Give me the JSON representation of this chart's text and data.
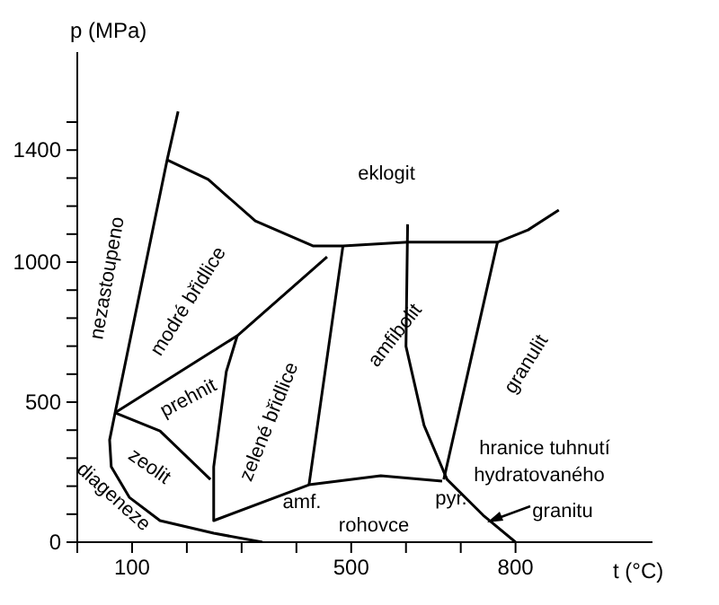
{
  "chart_data": {
    "type": "line",
    "xlabel": "t (°C)",
    "ylabel": "p (MPa)",
    "xlim": [
      0,
      1050
    ],
    "ylim": [
      0,
      1750
    ],
    "xticks": [
      {
        "value": 0,
        "label": null
      },
      100,
      {
        "value": 200,
        "label": null
      },
      {
        "value": 300,
        "label": null
      },
      {
        "value": 400,
        "label": null
      },
      500,
      {
        "value": 600,
        "label": null
      },
      {
        "value": 700,
        "label": null
      },
      800
    ],
    "yticks": [
      0,
      {
        "value": 100,
        "label": null
      },
      {
        "value": 200,
        "label": null
      },
      {
        "value": 300,
        "label": null
      },
      {
        "value": 400,
        "label": null
      },
      500,
      {
        "value": 600,
        "label": null
      },
      {
        "value": 700,
        "label": null
      },
      {
        "value": 800,
        "label": null
      },
      {
        "value": 900,
        "label": null
      },
      1000,
      {
        "value": 1100,
        "label": null
      },
      {
        "value": 1200,
        "label": null
      },
      {
        "value": 1300,
        "label": null
      },
      1400,
      {
        "value": 1500,
        "label": null
      }
    ],
    "marker": "none",
    "line_style": "solid",
    "series": [
      {
        "color": "#000000",
        "x": [
          184,
          164,
          69,
          59,
          62,
          95,
          151,
          249,
          338
        ],
        "values": [
          1538,
          1365,
          462,
          365,
          269,
          160,
          77,
          32,
          0
        ]
      },
      {
        "color": "#000000",
        "x": [
          164,
          239,
          325,
          430,
          485,
          603,
          767,
          823,
          879
        ],
        "values": [
          1365,
          1295,
          1147,
          1058,
          1058,
          1071,
          1071,
          1115,
          1186
        ]
      },
      {
        "color": "#000000",
        "x": [
          69,
          292,
          456
        ],
        "values": [
          462,
          737,
          1019
        ]
      },
      {
        "color": "#000000",
        "x": [
          69,
          151,
          243
        ],
        "values": [
          462,
          397,
          224
        ]
      },
      {
        "color": "#000000",
        "x": [
          292,
          272,
          249,
          249,
          423,
          554,
          666
        ],
        "values": [
          737,
          609,
          269,
          77,
          205,
          237,
          218
        ]
      },
      {
        "color": "#000000",
        "x": [
          485,
          423
        ],
        "values": [
          1058,
          205
        ]
      },
      {
        "color": "#000000",
        "x": [
          767,
          669
        ],
        "values": [
          1071,
          224
        ]
      },
      {
        "color": "#000000",
        "x": [
          603,
          600,
          633,
          675,
          741,
          800
        ],
        "values": [
          1135,
          699,
          417,
          224,
          96,
          0
        ]
      }
    ],
    "annotations": [
      "nezastoupeno",
      "eklogit",
      "modré břidlice",
      "prehnit",
      "zelené břidlice",
      "amfibolit",
      "granulit",
      "zeolit",
      "diageneze",
      "amf.",
      "rohovce",
      "pyr.",
      "hranice tuhnutí",
      "hydratovaného",
      "granitu"
    ]
  }
}
